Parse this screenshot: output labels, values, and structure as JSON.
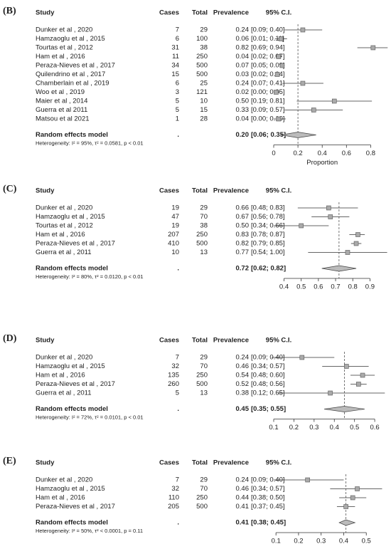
{
  "chart_data": [
    {
      "type": "forest",
      "panel_label": "(B)",
      "headers": [
        "Study",
        "Cases",
        "Total",
        "Prevalence",
        "95% C.I."
      ],
      "studies": [
        "Dunker et al , 2020",
        "Hamzaoglu et al , 2015",
        "Tourtas et al , 2012",
        "Ham et al , 2016",
        "Peraza-Nieves et al , 2017",
        "Quilendrino et al , 2017",
        "Chamberlain et al , 2019",
        "Woo et al , 2019",
        "Maier et al , 2014",
        "Guerra et al 2011",
        "Matsou et al 2021"
      ],
      "cases": [
        7,
        6,
        31,
        11,
        34,
        15,
        6,
        3,
        5,
        5,
        1
      ],
      "totals": [
        29,
        100,
        38,
        250,
        500,
        500,
        25,
        121,
        10,
        15,
        28
      ],
      "values": [
        0.24,
        0.06,
        0.82,
        0.04,
        0.07,
        0.03,
        0.24,
        0.02,
        0.5,
        0.33,
        0.04
      ],
      "value_labels": [
        "0.24",
        "0.06",
        "0.82",
        "0.04",
        "0.07",
        "0.03",
        "0.24",
        "0.02",
        "0.50",
        "0.33",
        "0.04"
      ],
      "lower": [
        0.09,
        0.01,
        0.69,
        0.02,
        0.05,
        0.02,
        0.07,
        0.0,
        0.19,
        0.09,
        0.0
      ],
      "upper": [
        0.4,
        0.11,
        0.94,
        0.07,
        0.09,
        0.04,
        0.41,
        0.05,
        0.81,
        0.57,
        0.1
      ],
      "ci_labels": [
        "[0.09; 0.40]",
        "[0.01; 0.11]",
        "[0.69; 0.94]",
        "[0.02; 0.07]",
        "[0.05; 0.09]",
        "[0.02; 0.04]",
        "[0.07; 0.41]",
        "[0.00; 0.05]",
        "[0.19; 0.81]",
        "[0.09; 0.57]",
        "[0.00; 0.10]"
      ],
      "pooled": {
        "label": "Random effects model",
        "cases": ".",
        "value": 0.2,
        "value_label": "0.20",
        "lower": 0.06,
        "upper": 0.35,
        "ci_label": "[0.06; 0.35]"
      },
      "heterogeneity": "Heterogeneity: I² = 95%, τ² = 0.0581, p < 0.01",
      "xlabel": "Proportion",
      "xlim": [
        0,
        0.95
      ],
      "xticks": [
        0,
        0.2,
        0.4,
        0.6,
        0.8
      ]
    },
    {
      "type": "forest",
      "panel_label": "(C)",
      "headers": [
        "Study",
        "Cases",
        "Total",
        "Prevalence",
        "95% C.I."
      ],
      "studies": [
        "Dunker et al , 2020",
        "Hamzaoglu et al , 2015",
        "Tourtas et al , 2012",
        "Ham et al , 2016",
        "Peraza-Nieves et al , 2017",
        "Guerra et al , 2011"
      ],
      "cases": [
        19,
        47,
        19,
        207,
        410,
        10
      ],
      "totals": [
        29,
        70,
        38,
        250,
        500,
        13
      ],
      "values": [
        0.66,
        0.67,
        0.5,
        0.83,
        0.82,
        0.77
      ],
      "value_labels": [
        "0.66",
        "0.67",
        "0.50",
        "0.83",
        "0.82",
        "0.77"
      ],
      "lower": [
        0.48,
        0.56,
        0.34,
        0.78,
        0.79,
        0.54
      ],
      "upper": [
        0.83,
        0.78,
        0.66,
        0.87,
        0.85,
        1.0
      ],
      "ci_labels": [
        "[0.48; 0.83]",
        "[0.56; 0.78]",
        "[0.34; 0.66]",
        "[0.78; 0.87]",
        "[0.79; 0.85]",
        "[0.54; 1.00]"
      ],
      "pooled": {
        "label": "Random effects model",
        "cases": ".",
        "value": 0.72,
        "value_label": "0.72",
        "lower": 0.62,
        "upper": 0.82,
        "ci_label": "[0.62; 0.82]"
      },
      "heterogeneity": "Heterogeneity: I² = 80%, τ² = 0.0120, p < 0.01",
      "xlim": [
        0.34,
        1.01
      ],
      "xticks": [
        0.4,
        0.5,
        0.6,
        0.7,
        0.8,
        0.9
      ]
    },
    {
      "type": "forest",
      "panel_label": "(D)",
      "headers": [
        "Study",
        "Cases",
        "Total",
        "Prevalence",
        "95% C.I."
      ],
      "studies": [
        "Dunker et al , 2020",
        "Hamzaoglu et al , 2015",
        "Ham et al , 2016",
        "Peraza-Nieves et al , 2017",
        "Guerra et al , 2011"
      ],
      "cases": [
        7,
        32,
        135,
        260,
        5
      ],
      "totals": [
        29,
        70,
        250,
        500,
        13
      ],
      "values": [
        0.24,
        0.46,
        0.54,
        0.52,
        0.38
      ],
      "value_labels": [
        "0.24",
        "0.46",
        "0.54",
        "0.52",
        "0.38"
      ],
      "lower": [
        0.09,
        0.34,
        0.48,
        0.48,
        0.12
      ],
      "upper": [
        0.4,
        0.57,
        0.6,
        0.56,
        0.65
      ],
      "ci_labels": [
        "[0.09; 0.40]",
        "[0.34; 0.57]",
        "[0.48; 0.60]",
        "[0.48; 0.56]",
        "[0.12; 0.65]"
      ],
      "pooled": {
        "label": "Random effects model",
        "cases": ".",
        "value": 0.45,
        "value_label": "0.45",
        "lower": 0.35,
        "upper": 0.55,
        "ci_label": "[0.35; 0.55]"
      },
      "heterogeneity": "Heterogeneity: I² = 72%, τ² = 0.0101, p < 0.01",
      "xlim": [
        0.1,
        0.67
      ],
      "xticks": [
        0.1,
        0.2,
        0.3,
        0.4,
        0.5,
        0.6
      ]
    },
    {
      "type": "forest",
      "panel_label": "(E)",
      "headers": [
        "Study",
        "Cases",
        "Total",
        "Prevalence",
        "95% C.I."
      ],
      "studies": [
        "Dunker et al , 2020",
        "Hamzaoglu et al , 2015",
        "Ham et al , 2016",
        "Peraza-Nieves et al , 2017"
      ],
      "cases": [
        7,
        32,
        110,
        205
      ],
      "totals": [
        29,
        70,
        250,
        500
      ],
      "values": [
        0.24,
        0.46,
        0.44,
        0.41
      ],
      "value_labels": [
        "0.24",
        "0.46",
        "0.44",
        "0.41"
      ],
      "lower": [
        0.09,
        0.34,
        0.38,
        0.37
      ],
      "upper": [
        0.4,
        0.57,
        0.5,
        0.45
      ],
      "ci_labels": [
        "[0.09; 0.40]",
        "[0.34; 0.57]",
        "[0.38; 0.50]",
        "[0.37; 0.45]"
      ],
      "pooled": {
        "label": "Random effects model",
        "cases": ".",
        "value": 0.41,
        "value_label": "0.41",
        "lower": 0.38,
        "upper": 0.45,
        "ci_label": "[0.38; 0.45]"
      },
      "heterogeneity": "Heterogeneity: I² = 50%, τ² < 0.0001, p = 0.11",
      "xlim": [
        0.09,
        0.6
      ],
      "xticks": [
        0.1,
        0.2,
        0.3,
        0.4,
        0.5
      ]
    }
  ]
}
